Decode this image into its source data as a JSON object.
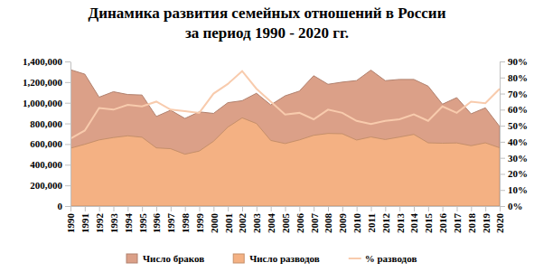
{
  "chart_data": {
    "type": "area",
    "title": [
      "Динамика развития семейных отношений в России",
      "за период 1990 - 2020 гг."
    ],
    "categories": [
      "1990",
      "1991",
      "1992",
      "1993",
      "1994",
      "1995",
      "1996",
      "1997",
      "1998",
      "1999",
      "2000",
      "2001",
      "2002",
      "2003",
      "2004",
      "2005",
      "2006",
      "2007",
      "2008",
      "2009",
      "2010",
      "2011",
      "2012",
      "2013",
      "2014",
      "2015",
      "2016",
      "2017",
      "2018",
      "2019",
      "2020"
    ],
    "series": [
      {
        "name": "Число браков",
        "type": "area",
        "color": "#dba088",
        "values": [
          1320000,
          1277000,
          1054000,
          1107000,
          1080000,
          1075000,
          867000,
          928000,
          848000,
          912000,
          897000,
          1001000,
          1020000,
          1092000,
          979000,
          1067000,
          1113000,
          1262000,
          1179000,
          1200000,
          1215000,
          1316000,
          1214000,
          1226000,
          1226000,
          1161000,
          986000,
          1050000,
          893000,
          951000,
          770000
        ]
      },
      {
        "name": "Число разводов",
        "type": "area",
        "color": "#f4b183",
        "values": [
          560000,
          598000,
          640000,
          663000,
          680000,
          666000,
          563000,
          555000,
          502000,
          532000,
          627000,
          764000,
          854000,
          799000,
          635000,
          605000,
          640000,
          685000,
          703000,
          700000,
          639000,
          669000,
          644000,
          668000,
          694000,
          612000,
          608000,
          611000,
          584000,
          612000,
          564000
        ]
      },
      {
        "name": "% разводов",
        "type": "line",
        "axis": "y2",
        "color": "#f8cbad",
        "values": [
          42,
          47,
          61,
          60,
          63,
          62,
          65,
          60,
          59,
          58,
          70,
          76,
          84,
          73,
          65,
          57,
          58,
          54,
          60,
          58,
          53,
          51,
          53,
          54,
          57,
          53,
          62,
          58,
          65,
          64,
          73
        ]
      }
    ],
    "ylim": [
      0,
      1400000
    ],
    "yticks": [
      0,
      {
        "value": 200000,
        "label": "200,000"
      },
      {
        "value": 400000,
        "label": "400,000"
      },
      {
        "value": 600000,
        "label": "600,000"
      },
      {
        "value": 800000,
        "label": "800,000"
      },
      {
        "value": 1000000,
        "label": "1,000,000"
      },
      {
        "value": 1200000,
        "label": "1,200,000"
      },
      {
        "value": 1400000,
        "label": "1,400,000"
      }
    ],
    "y2lim": [
      0,
      90
    ],
    "y2ticks": [
      {
        "value": 0,
        "label": "0%"
      },
      {
        "value": 10,
        "label": "10%"
      },
      {
        "value": 20,
        "label": "20%"
      },
      {
        "value": 30,
        "label": "30%"
      },
      {
        "value": 40,
        "label": "40%"
      },
      {
        "value": 50,
        "label": "50%"
      },
      {
        "value": 60,
        "label": "60%"
      },
      {
        "value": 70,
        "label": "70%"
      },
      {
        "value": 80,
        "label": "80%"
      },
      {
        "value": 90,
        "label": "90%"
      }
    ],
    "legend": "bottom"
  }
}
